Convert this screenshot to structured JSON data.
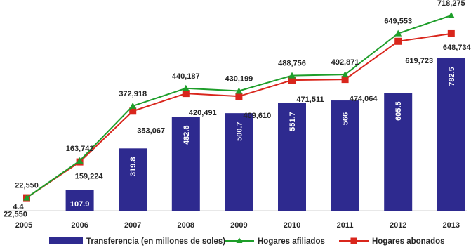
{
  "chart_data": {
    "type": "bar",
    "categories": [
      "2005",
      "2006",
      "2007",
      "2008",
      "2009",
      "2010",
      "2011",
      "2012",
      "2013"
    ],
    "series": [
      {
        "name": "Transferencia (en millones de soles)",
        "kind": "bar",
        "color": "#2e2a8f",
        "values": [
          4.4,
          107.9,
          319.8,
          482.6,
          500.7,
          551.7,
          566,
          605.5,
          782.5
        ],
        "labels": [
          "4.4",
          "107.9",
          "319.8",
          "482.6",
          "500.7",
          "551.7",
          "566",
          "605.5",
          "782.5"
        ]
      },
      {
        "name": "Hogares afiliados",
        "kind": "line",
        "marker": "triangle",
        "color": "#1e9e2a",
        "values": [
          22550,
          163742,
          372918,
          440187,
          430199,
          488756,
          492871,
          649553,
          718275
        ],
        "labels": [
          "22,550",
          "163,742",
          "372,918",
          "440,187",
          "430,199",
          "488,756",
          "492,871",
          "649,553",
          "718,275"
        ]
      },
      {
        "name": "Hogares abonados",
        "kind": "line",
        "marker": "square",
        "color": "#d9261c",
        "values": [
          22550,
          159224,
          353067,
          420491,
          409610,
          471511,
          474064,
          619723,
          648734
        ],
        "labels": [
          "22,550",
          "159,224",
          "353,067",
          "420,491",
          "409,610",
          "471,511",
          "474,064",
          "619,723",
          "648,734"
        ]
      }
    ],
    "grid": false,
    "legend": "bottom"
  }
}
